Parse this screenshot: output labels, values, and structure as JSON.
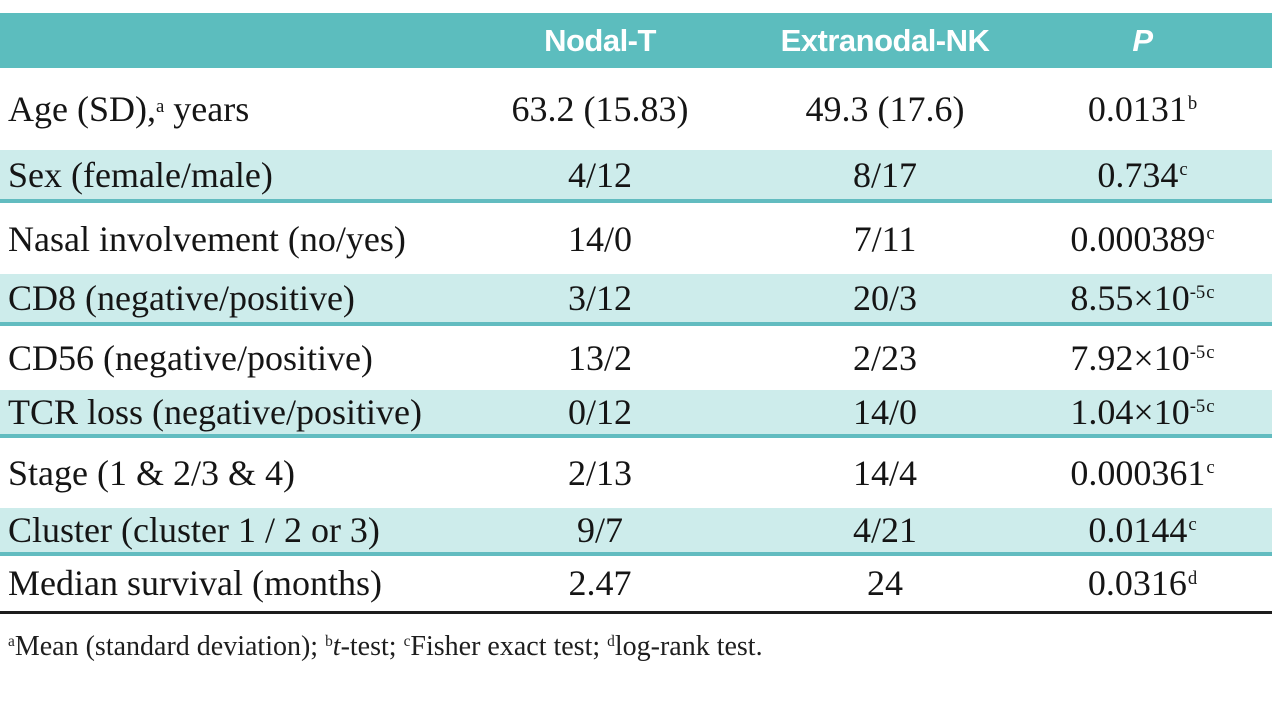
{
  "table": {
    "columns": [
      {
        "label": "Nodal-T",
        "italic": false
      },
      {
        "label": "Extranodal-NK",
        "italic": false
      },
      {
        "label": "P",
        "italic": true
      }
    ],
    "rows": [
      {
        "label_pre": "Age (SD),",
        "label_sup": "a",
        "label_post": " years",
        "nodal": "63.2 (15.83)",
        "extranodal": "49.3 (17.6)",
        "p_base": "0.0131",
        "p_exp": "",
        "p_note": "b",
        "shaded": false
      },
      {
        "label_pre": "Sex (female/male)",
        "label_sup": "",
        "label_post": "",
        "nodal": "4/12",
        "extranodal": "8/17",
        "p_base": "0.734",
        "p_exp": "",
        "p_note": "c",
        "shaded": true
      },
      {
        "label_pre": "Nasal involvement (no/yes)",
        "label_sup": "",
        "label_post": "",
        "nodal": "14/0",
        "extranodal": "7/11",
        "p_base": "0.000389",
        "p_exp": "",
        "p_note": "c",
        "shaded": false
      },
      {
        "label_pre": "CD8 (negative/positive)",
        "label_sup": "",
        "label_post": "",
        "nodal": "3/12",
        "extranodal": "20/3",
        "p_base": "8.55×10",
        "p_exp": "-5",
        "p_note": "c",
        "shaded": true
      },
      {
        "label_pre": "CD56 (negative/positive)",
        "label_sup": "",
        "label_post": "",
        "nodal": "13/2",
        "extranodal": "2/23",
        "p_base": "7.92×10",
        "p_exp": "-5",
        "p_note": "c",
        "shaded": false
      },
      {
        "label_pre": "TCR loss (negative/positive)",
        "label_sup": "",
        "label_post": "",
        "nodal": "0/12",
        "extranodal": "14/0",
        "p_base": "1.04×10",
        "p_exp": "-5",
        "p_note": "c",
        "shaded": true
      },
      {
        "label_pre": "Stage (1 & 2/3 & 4)",
        "label_sup": "",
        "label_post": "",
        "nodal": "2/13",
        "extranodal": "14/4",
        "p_base": "0.000361",
        "p_exp": "",
        "p_note": "c",
        "shaded": false
      },
      {
        "label_pre": "Cluster (cluster 1 / 2 or 3)",
        "label_sup": "",
        "label_post": "",
        "nodal": "9/7",
        "extranodal": "4/21",
        "p_base": "0.0144",
        "p_exp": "",
        "p_note": "c",
        "shaded": true
      },
      {
        "label_pre": "Median survival (months)",
        "label_sup": "",
        "label_post": "",
        "nodal": "2.47",
        "extranodal": "24",
        "p_base": "0.0316",
        "p_exp": "",
        "p_note": "d",
        "shaded": false
      }
    ],
    "footnote_segments": [
      {
        "sup": "a",
        "italic": "",
        "text": "Mean (standard deviation); "
      },
      {
        "sup": "b",
        "italic": "t",
        "text": "-test; "
      },
      {
        "sup": "c",
        "italic": "",
        "text": "Fisher exact test; "
      },
      {
        "sup": "d",
        "italic": "",
        "text": "log-rank test."
      }
    ],
    "colors": {
      "header_bg": "#5cbdbe",
      "shaded_bg": "#cdeceb",
      "shaded_border": "#62bcc0",
      "bottom_rule": "#1d1d1d",
      "header_text": "#ffffff",
      "body_text": "#151515"
    }
  },
  "chart_data": {
    "type": "table",
    "title": "",
    "columns": [
      "",
      "Nodal-T",
      "Extranodal-NK",
      "P"
    ],
    "rows": [
      [
        "Age (SD),ᵃ years",
        "63.2 (15.83)",
        "49.3 (17.6)",
        "0.0131ᵇ"
      ],
      [
        "Sex (female/male)",
        "4/12",
        "8/17",
        "0.734ᶜ"
      ],
      [
        "Nasal involvement (no/yes)",
        "14/0",
        "7/11",
        "0.000389ᶜ"
      ],
      [
        "CD8 (negative/positive)",
        "3/12",
        "20/3",
        "8.55×10⁻⁵ᶜ"
      ],
      [
        "CD56 (negative/positive)",
        "13/2",
        "2/23",
        "7.92×10⁻⁵ᶜ"
      ],
      [
        "TCR loss (negative/positive)",
        "0/12",
        "14/0",
        "1.04×10⁻⁵ᶜ"
      ],
      [
        "Stage (1 & 2/3 & 4)",
        "2/13",
        "14/4",
        "0.000361ᶜ"
      ],
      [
        "Cluster (cluster 1 / 2 or 3)",
        "9/7",
        "4/21",
        "0.0144ᶜ"
      ],
      [
        "Median survival (months)",
        "2.47",
        "24",
        "0.0316ᵈ"
      ]
    ],
    "footnote": "ᵃMean (standard deviation); ᵇt-test; ᶜFisher exact test; ᵈlog-rank test."
  }
}
